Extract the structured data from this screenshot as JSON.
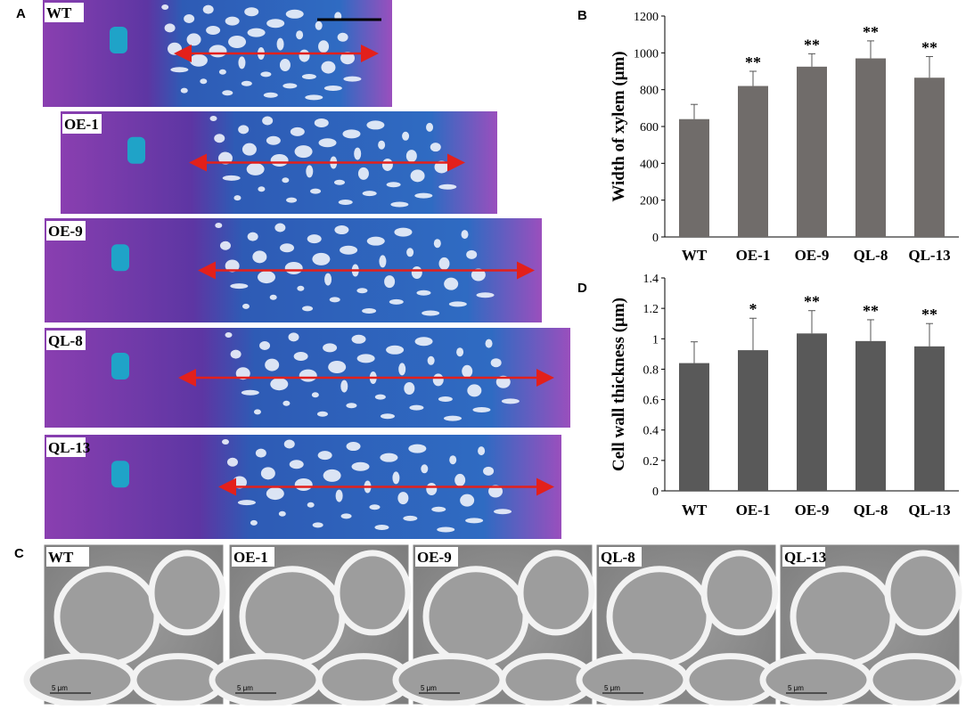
{
  "panel_labels": [
    "A",
    "B",
    "C",
    "D"
  ],
  "micrographs": {
    "labels": [
      "WT",
      "OE-1",
      "OE-9",
      "QL-8",
      "QL-13"
    ]
  },
  "tem": {
    "labels": [
      "WT",
      "OE-1",
      "OE-9",
      "QL-8",
      "QL-13"
    ],
    "scale_label": "5 μm"
  },
  "chart_data": [
    {
      "type": "bar",
      "ylabel": "Width of xylem (μm)",
      "categories": [
        "WT",
        "OE-1",
        "OE-9",
        "QL-8",
        "QL-13"
      ],
      "values": [
        640,
        820,
        925,
        970,
        865
      ],
      "errors": [
        80,
        80,
        70,
        95,
        115
      ],
      "annotations": [
        null,
        "**",
        "**",
        "**",
        "**"
      ],
      "color": "#706c6a",
      "ylim": [
        0,
        1200
      ],
      "yticks": [
        0,
        200,
        400,
        600,
        800,
        1000,
        1200
      ]
    },
    {
      "type": "bar",
      "ylabel": "Cell wall thickness (μm)",
      "categories": [
        "WT",
        "OE-1",
        "OE-9",
        "QL-8",
        "QL-13"
      ],
      "values": [
        0.84,
        0.925,
        1.035,
        0.985,
        0.95
      ],
      "errors": [
        0.14,
        0.21,
        0.15,
        0.14,
        0.15
      ],
      "annotations": [
        null,
        "*",
        "**",
        "**",
        "**"
      ],
      "color": "#595959",
      "ylim": [
        0,
        1.4
      ],
      "yticks": [
        0,
        0.2,
        0.4,
        0.6,
        0.8,
        1,
        1.2,
        1.4
      ]
    }
  ]
}
